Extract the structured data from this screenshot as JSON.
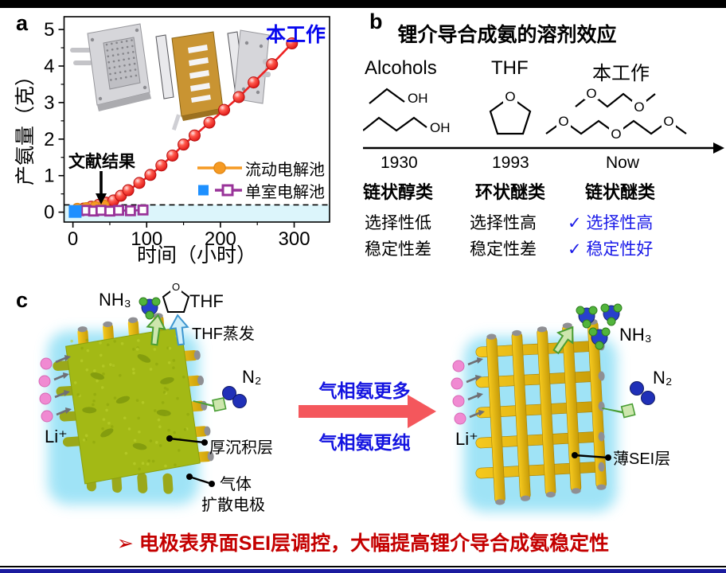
{
  "panels": {
    "a": "a",
    "b": "b",
    "c": "c"
  },
  "colors": {
    "accent_blue": "#0707ee",
    "check_blue": "#1a1ae8",
    "footer_red": "#c40000",
    "series_red": "#ee2222",
    "series_orange": "#f59a23",
    "series_purple": "#993399",
    "series_blue": "#1e90ff",
    "band_cyan": "#dcf5fb",
    "arrow_pink": "#f4575c"
  },
  "panel_a": {
    "this_work": "本工作",
    "literature": "文献结果",
    "legend": [
      "流动电解池",
      "单室电解池"
    ]
  },
  "chart_data": {
    "type": "line",
    "title": "",
    "xlabel": "时间（小时）",
    "ylabel": "产氨量（克）",
    "xlim": [
      -12,
      348
    ],
    "ylim": [
      -0.27,
      5.35
    ],
    "xticks": [
      0,
      100,
      200,
      300
    ],
    "xminor": [
      50,
      150,
      250
    ],
    "yticks": [
      0,
      1,
      2,
      3,
      4,
      5
    ],
    "yminor": [
      0.5,
      1.5,
      2.5,
      3.5,
      4.5
    ],
    "dashed_line_y": 0.2,
    "band_below_y": 0.2,
    "band_color": "#dcf5fb",
    "grid": false,
    "legend_position": "center right",
    "series": [
      {
        "name": "本工作（流动电解池）",
        "color": "#ee2222",
        "marker": "sphere",
        "x": [
          5,
          15,
          25,
          35,
          45,
          55,
          65,
          75,
          90,
          105,
          120,
          135,
          150,
          165,
          185,
          205,
          225,
          245,
          270,
          297
        ],
        "y": [
          0.05,
          0.1,
          0.15,
          0.2,
          0.26,
          0.32,
          0.45,
          0.6,
          0.8,
          1.02,
          1.28,
          1.55,
          1.85,
          2.1,
          2.45,
          2.8,
          3.15,
          3.55,
          4.05,
          4.62
        ]
      },
      {
        "name": "文献结果（流动电解池）",
        "color": "#f59a23",
        "marker": "circle",
        "x": [
          6,
          18,
          30,
          42
        ],
        "y": [
          0.1,
          0.12,
          0.15,
          0.19
        ]
      },
      {
        "name": "文献结果（单室电解池）",
        "color": "#993399",
        "marker": "open-square",
        "x": [
          8,
          18,
          28,
          38,
          50,
          62,
          78,
          95
        ],
        "y": [
          0.04,
          0.05,
          0.03,
          0.05,
          0.03,
          0.05,
          0.04,
          0.06
        ]
      },
      {
        "name": "文献结果（单室电解池·方块）",
        "color": "#1e90ff",
        "marker": "square",
        "x": [
          3
        ],
        "y": [
          0.02
        ]
      }
    ]
  },
  "panel_b": {
    "title": "锂介导合成氨的溶剂效应",
    "columns": [
      {
        "header": "Alcohols",
        "year": "1930",
        "class": "链状醇类",
        "props": [
          "选择性低",
          "稳定性差"
        ],
        "highlight": false
      },
      {
        "header": "THF",
        "year": "1993",
        "class": "环状醚类",
        "props": [
          "选择性高",
          "稳定性差"
        ],
        "highlight": false
      },
      {
        "header": "本工作",
        "year": "Now",
        "class": "链状醚类",
        "props": [
          "✓ 选择性高",
          "✓ 稳定性好"
        ],
        "highlight": true
      }
    ],
    "chem": {
      "o": "O",
      "oh": "OH"
    }
  },
  "panel_c": {
    "nh3_left": "NH₃",
    "thf": "THF",
    "thf_evap": "THF蒸发",
    "n2_left": "N₂",
    "li_left": "Li⁺",
    "thick_layer": "厚沉积层",
    "gde_line1": "气体",
    "gde_line2": "扩散电极",
    "arrow_top": "气相氨更多",
    "arrow_bottom": "气相氨更纯",
    "li_right": "Li⁺",
    "nh3_right": "NH₃",
    "n2_right": "N₂",
    "thin_sei": "薄SEI层"
  },
  "footer": {
    "text": "➢ 电极表界面SEI层调控，大幅提高锂介导合成氨稳定性"
  }
}
